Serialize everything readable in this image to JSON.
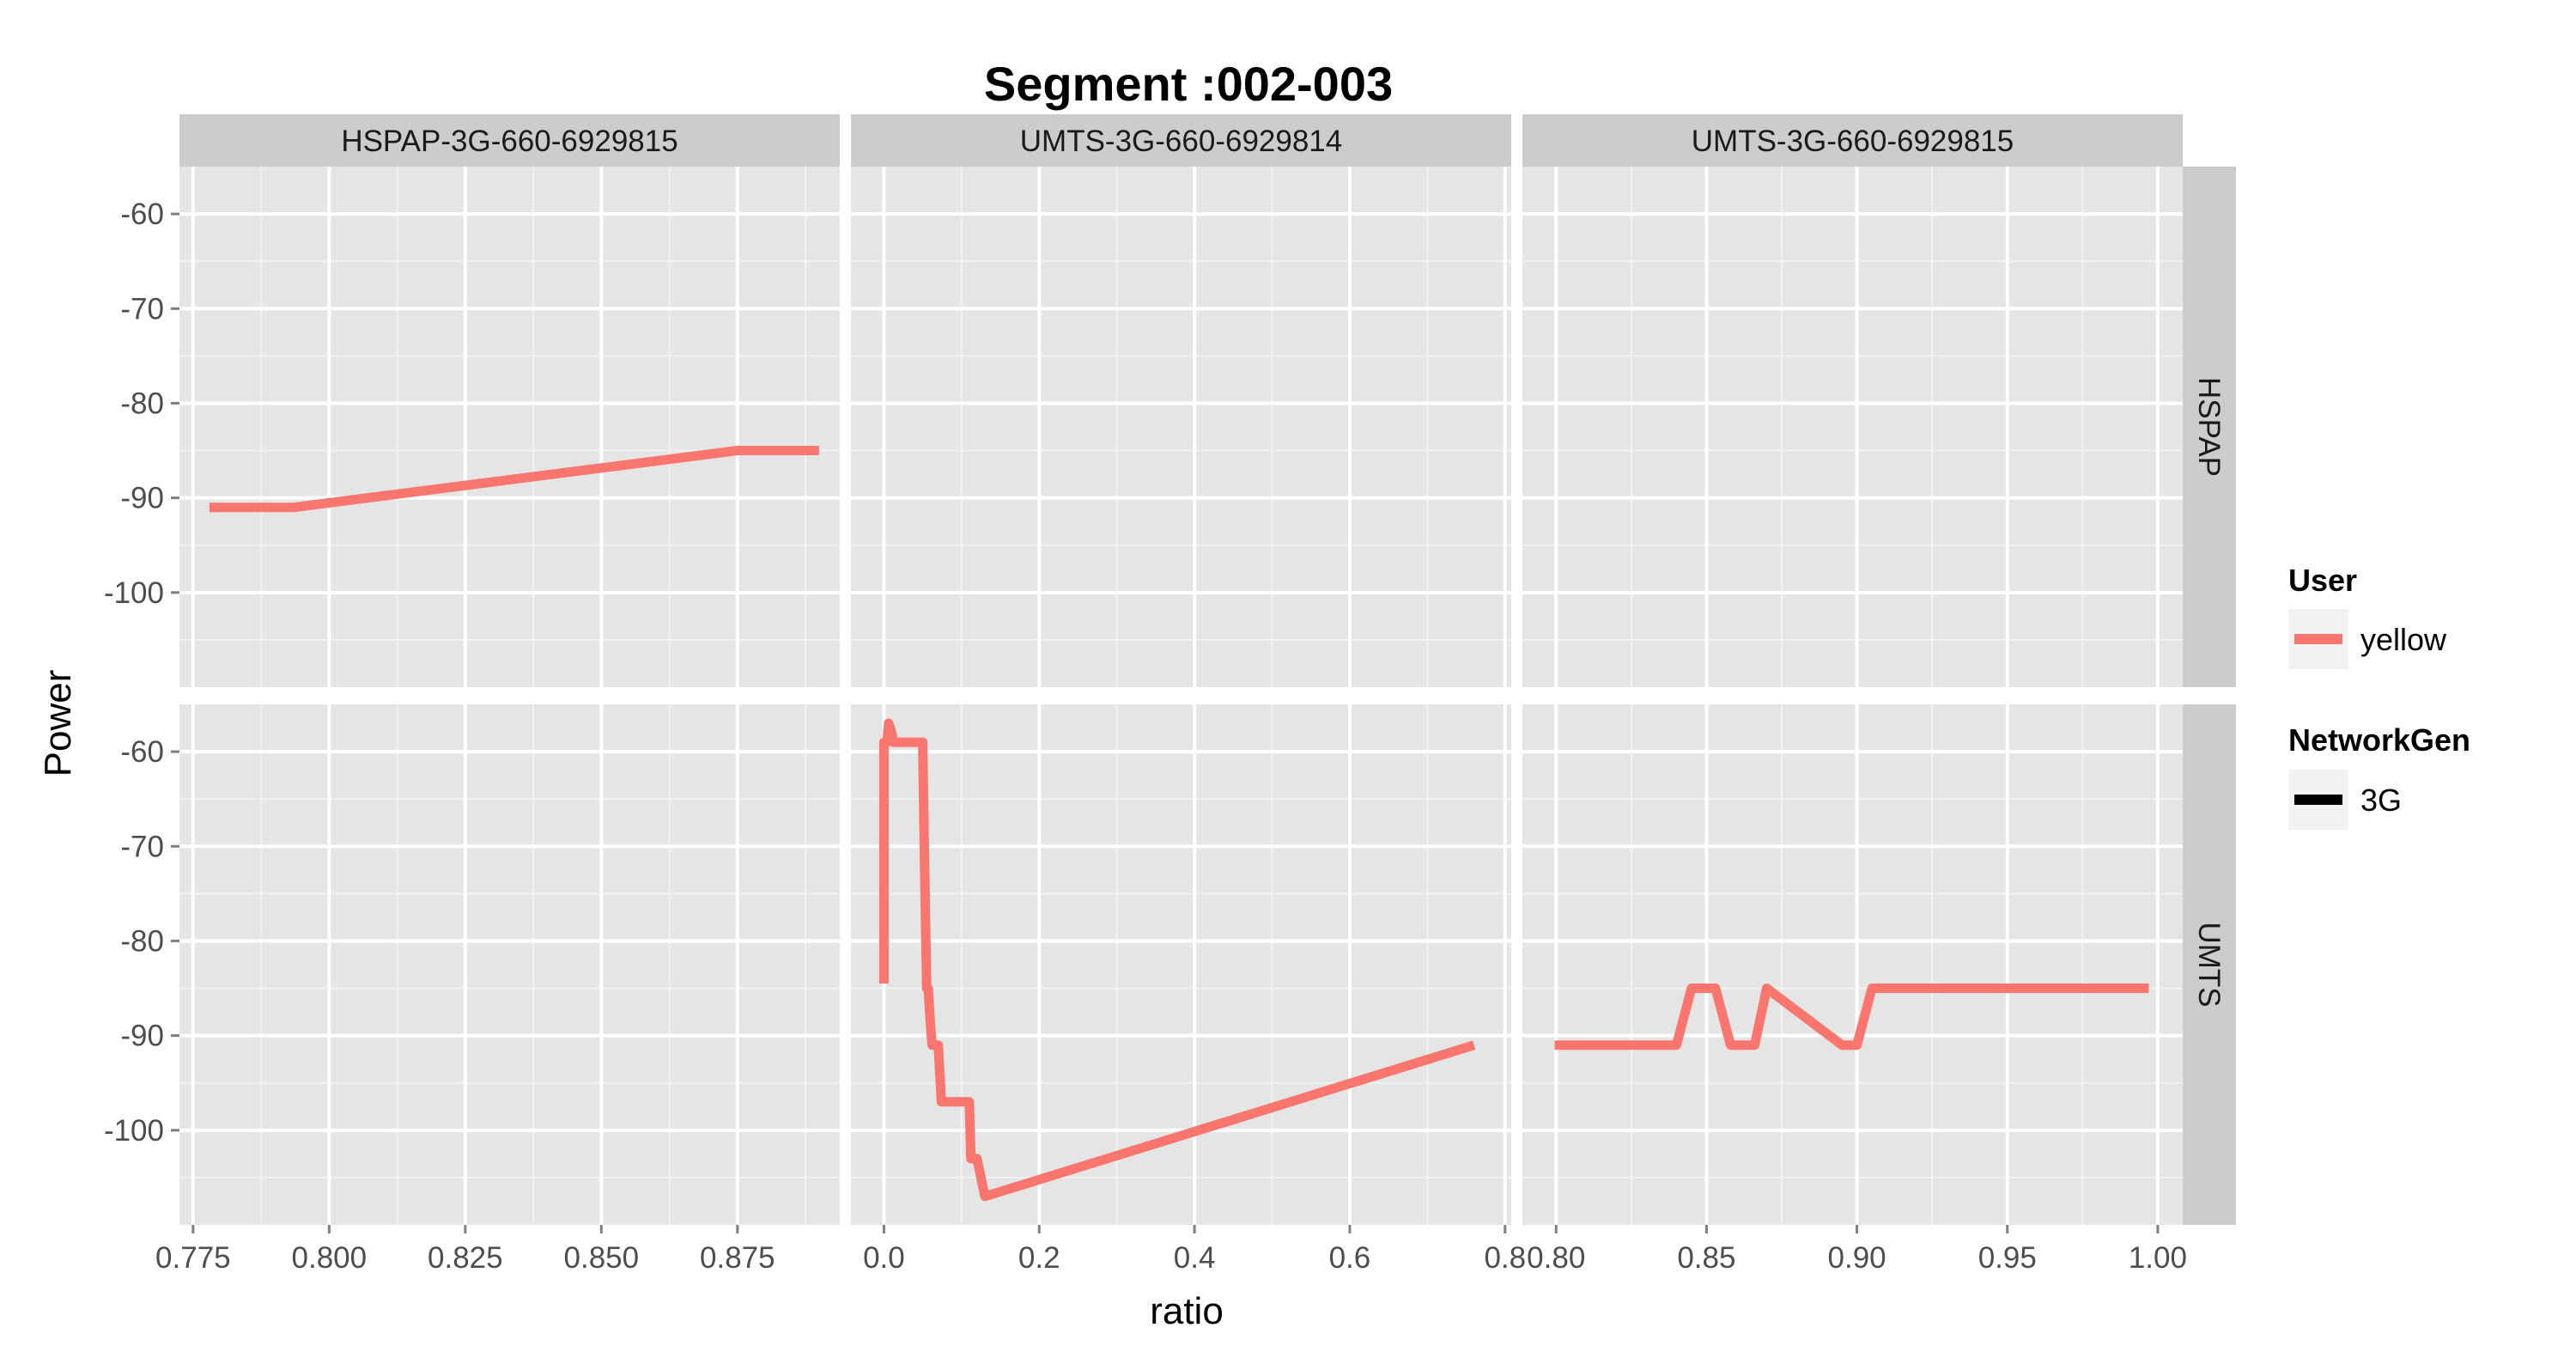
{
  "chart_data": {
    "type": "line",
    "title": "Segment :002-003",
    "xlabel": "ratio",
    "ylabel": "Power",
    "columns": [
      {
        "label": "HSPAP-3G-660-6929815",
        "xlim": [
          0.7725,
          0.8938
        ],
        "xticks": [
          0.775,
          0.8,
          0.825,
          0.85,
          0.875
        ],
        "xtick_labels": [
          "0.775",
          "0.800",
          "0.825",
          "0.850",
          "0.875"
        ]
      },
      {
        "label": "UMTS-3G-660-6929814",
        "xlim": [
          -0.0425,
          0.808
        ],
        "xticks": [
          0.0,
          0.2,
          0.4,
          0.6,
          0.8
        ],
        "xtick_labels": [
          "0.0",
          "0.2",
          "0.4",
          "0.6",
          "0.8"
        ]
      },
      {
        "label": "UMTS-3G-660-6929815",
        "xlim": [
          0.7888,
          1.0083
        ],
        "xticks": [
          0.8,
          0.85,
          0.9,
          0.95,
          1.0
        ],
        "xtick_labels": [
          "0.80",
          "0.85",
          "0.90",
          "0.95",
          "1.00"
        ]
      }
    ],
    "rows": [
      {
        "label": "HSPAP"
      },
      {
        "label": "UMTS"
      }
    ],
    "ylim": [
      -110,
      -55
    ],
    "yticks": [
      -60,
      -70,
      -80,
      -90,
      -100
    ],
    "ytick_labels": [
      "-60",
      "-70",
      "-80",
      "-90",
      "-100"
    ],
    "grid": true,
    "legend_position": "right",
    "panels": [
      {
        "row": 0,
        "col": 0,
        "series": "yellow",
        "x": [
          0.778,
          0.7935,
          0.875,
          0.89
        ],
        "y": [
          -91,
          -91,
          -85,
          -85
        ]
      },
      {
        "row": 0,
        "col": 1,
        "series": "yellow",
        "x": [],
        "y": []
      },
      {
        "row": 0,
        "col": 2,
        "series": "yellow",
        "x": [],
        "y": []
      },
      {
        "row": 1,
        "col": 0,
        "series": "yellow",
        "x": [],
        "y": []
      },
      {
        "row": 1,
        "col": 1,
        "series": "yellow",
        "x": [
          0.0,
          0.0,
          0.004,
          0.006,
          0.01,
          0.012,
          0.05,
          0.052,
          0.055,
          0.057,
          0.06,
          0.062,
          0.068,
          0.07,
          0.074,
          0.076,
          0.11,
          0.112,
          0.115,
          0.12,
          0.125,
          0.13,
          0.76
        ],
        "y": [
          -84.5,
          -59,
          -59,
          -57,
          -58,
          -59,
          -59,
          -70,
          -85,
          -85,
          -89,
          -91,
          -91,
          -91,
          -97,
          -97,
          -97,
          -103,
          -103,
          -103,
          -105,
          -107,
          -91
        ]
      },
      {
        "row": 1,
        "col": 2,
        "series": "yellow",
        "x": [
          0.7995,
          0.84,
          0.845,
          0.853,
          0.858,
          0.862,
          0.866,
          0.87,
          0.895,
          0.9,
          0.905,
          0.997
        ],
        "y": [
          -91,
          -91,
          -85,
          -85,
          -91,
          -91,
          -91,
          -85,
          -91,
          -91,
          -85,
          -85
        ]
      }
    ],
    "legend": {
      "user_title": "User",
      "user_entries": [
        {
          "label": "yellow",
          "color": "#F8766D"
        }
      ],
      "gen_title": "NetworkGen",
      "gen_entries": [
        {
          "label": "3G",
          "color": "#000000"
        }
      ]
    }
  }
}
